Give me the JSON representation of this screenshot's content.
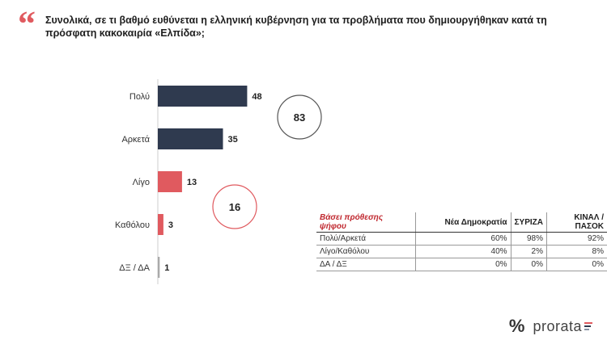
{
  "title": "Συνολικά, σε τι βαθμό ευθύνεται η ελληνική κυβέρνηση για τα προβλήματα που δημιουργήθηκαν κατά τη πρόσφατη κακοκαιρία «Ελπίδα»;",
  "chart_data": {
    "type": "bar",
    "orientation": "horizontal",
    "categories": [
      "Πολύ",
      "Αρκετά",
      "Λίγο",
      "Καθόλου",
      "ΔΞ / ΔΑ"
    ],
    "values": [
      48,
      35,
      13,
      3,
      1
    ],
    "colors": [
      "#2f3a4f",
      "#2f3a4f",
      "#e05a5f",
      "#e05a5f",
      "#aaaaaa"
    ],
    "groups": [
      {
        "value": 83,
        "color": "#555555"
      },
      {
        "value": 16,
        "color": "#e05a5f"
      }
    ]
  },
  "table": {
    "caption": "Βάσει πρόθεσης ψήφου",
    "columns": [
      "Νέα Δημοκρατία",
      "ΣΥΡΙΖΑ",
      "ΚΙΝΑΛ / ΠΑΣΟΚ"
    ],
    "rows": [
      {
        "label": "Πολύ/Αρκετά",
        "values": [
          "60%",
          "98%",
          "92%"
        ]
      },
      {
        "label": "Λίγο/Καθόλου",
        "values": [
          "40%",
          "2%",
          "8%"
        ]
      },
      {
        "label": "ΔΑ / ΔΞ",
        "values": [
          "0%",
          "0%",
          "0%"
        ]
      }
    ]
  },
  "brand": {
    "symbol": "%",
    "name": "prorata",
    "bar_colors": [
      "#e05a5f",
      "#2f3a4f",
      "#8a93a5"
    ]
  }
}
